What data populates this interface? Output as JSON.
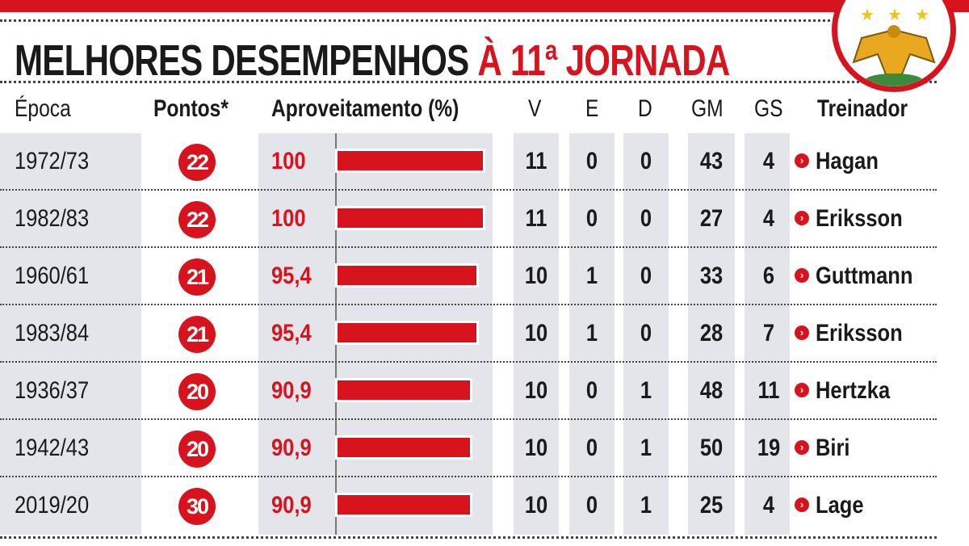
{
  "title": {
    "main": "MELHORES DESEMPENHOS",
    "highlight": "À 11ª JORNADA"
  },
  "colors": {
    "accent": "#d7141d",
    "column_bg": "#e4e5ea"
  },
  "chart_data": {
    "type": "table",
    "title": "MELHORES DESEMPENHOS À 11ª JORNADA",
    "columns": [
      "Época",
      "Pontos*",
      "Aproveitamento (%)",
      "V",
      "E",
      "D",
      "GM",
      "GS",
      "Treinador"
    ],
    "bar_column": "Aproveitamento (%)",
    "bar_range": [
      0,
      100
    ],
    "rows": [
      {
        "season": "1972/73",
        "points": "22",
        "pct": "100",
        "pct_value": 100,
        "v": "11",
        "e": "0",
        "d": "0",
        "gm": "43",
        "gs": "4",
        "coach": "Hagan"
      },
      {
        "season": "1982/83",
        "points": "22",
        "pct": "100",
        "pct_value": 100,
        "v": "11",
        "e": "0",
        "d": "0",
        "gm": "27",
        "gs": "4",
        "coach": "Eriksson"
      },
      {
        "season": "1960/61",
        "points": "21",
        "pct": "95,4",
        "pct_value": 95.4,
        "v": "10",
        "e": "1",
        "d": "0",
        "gm": "33",
        "gs": "6",
        "coach": "Guttmann"
      },
      {
        "season": "1983/84",
        "points": "21",
        "pct": "95,4",
        "pct_value": 95.4,
        "v": "10",
        "e": "1",
        "d": "0",
        "gm": "28",
        "gs": "7",
        "coach": "Eriksson"
      },
      {
        "season": "1936/37",
        "points": "20",
        "pct": "90,9",
        "pct_value": 90.9,
        "v": "10",
        "e": "0",
        "d": "1",
        "gm": "48",
        "gs": "11",
        "coach": "Hertzka"
      },
      {
        "season": "1942/43",
        "points": "20",
        "pct": "90,9",
        "pct_value": 90.9,
        "v": "10",
        "e": "0",
        "d": "1",
        "gm": "50",
        "gs": "19",
        "coach": "Biri"
      },
      {
        "season": "2019/20",
        "points": "30",
        "pct": "90,9",
        "pct_value": 90.9,
        "v": "10",
        "e": "0",
        "d": "1",
        "gm": "25",
        "gs": "4",
        "coach": "Lage"
      }
    ]
  }
}
